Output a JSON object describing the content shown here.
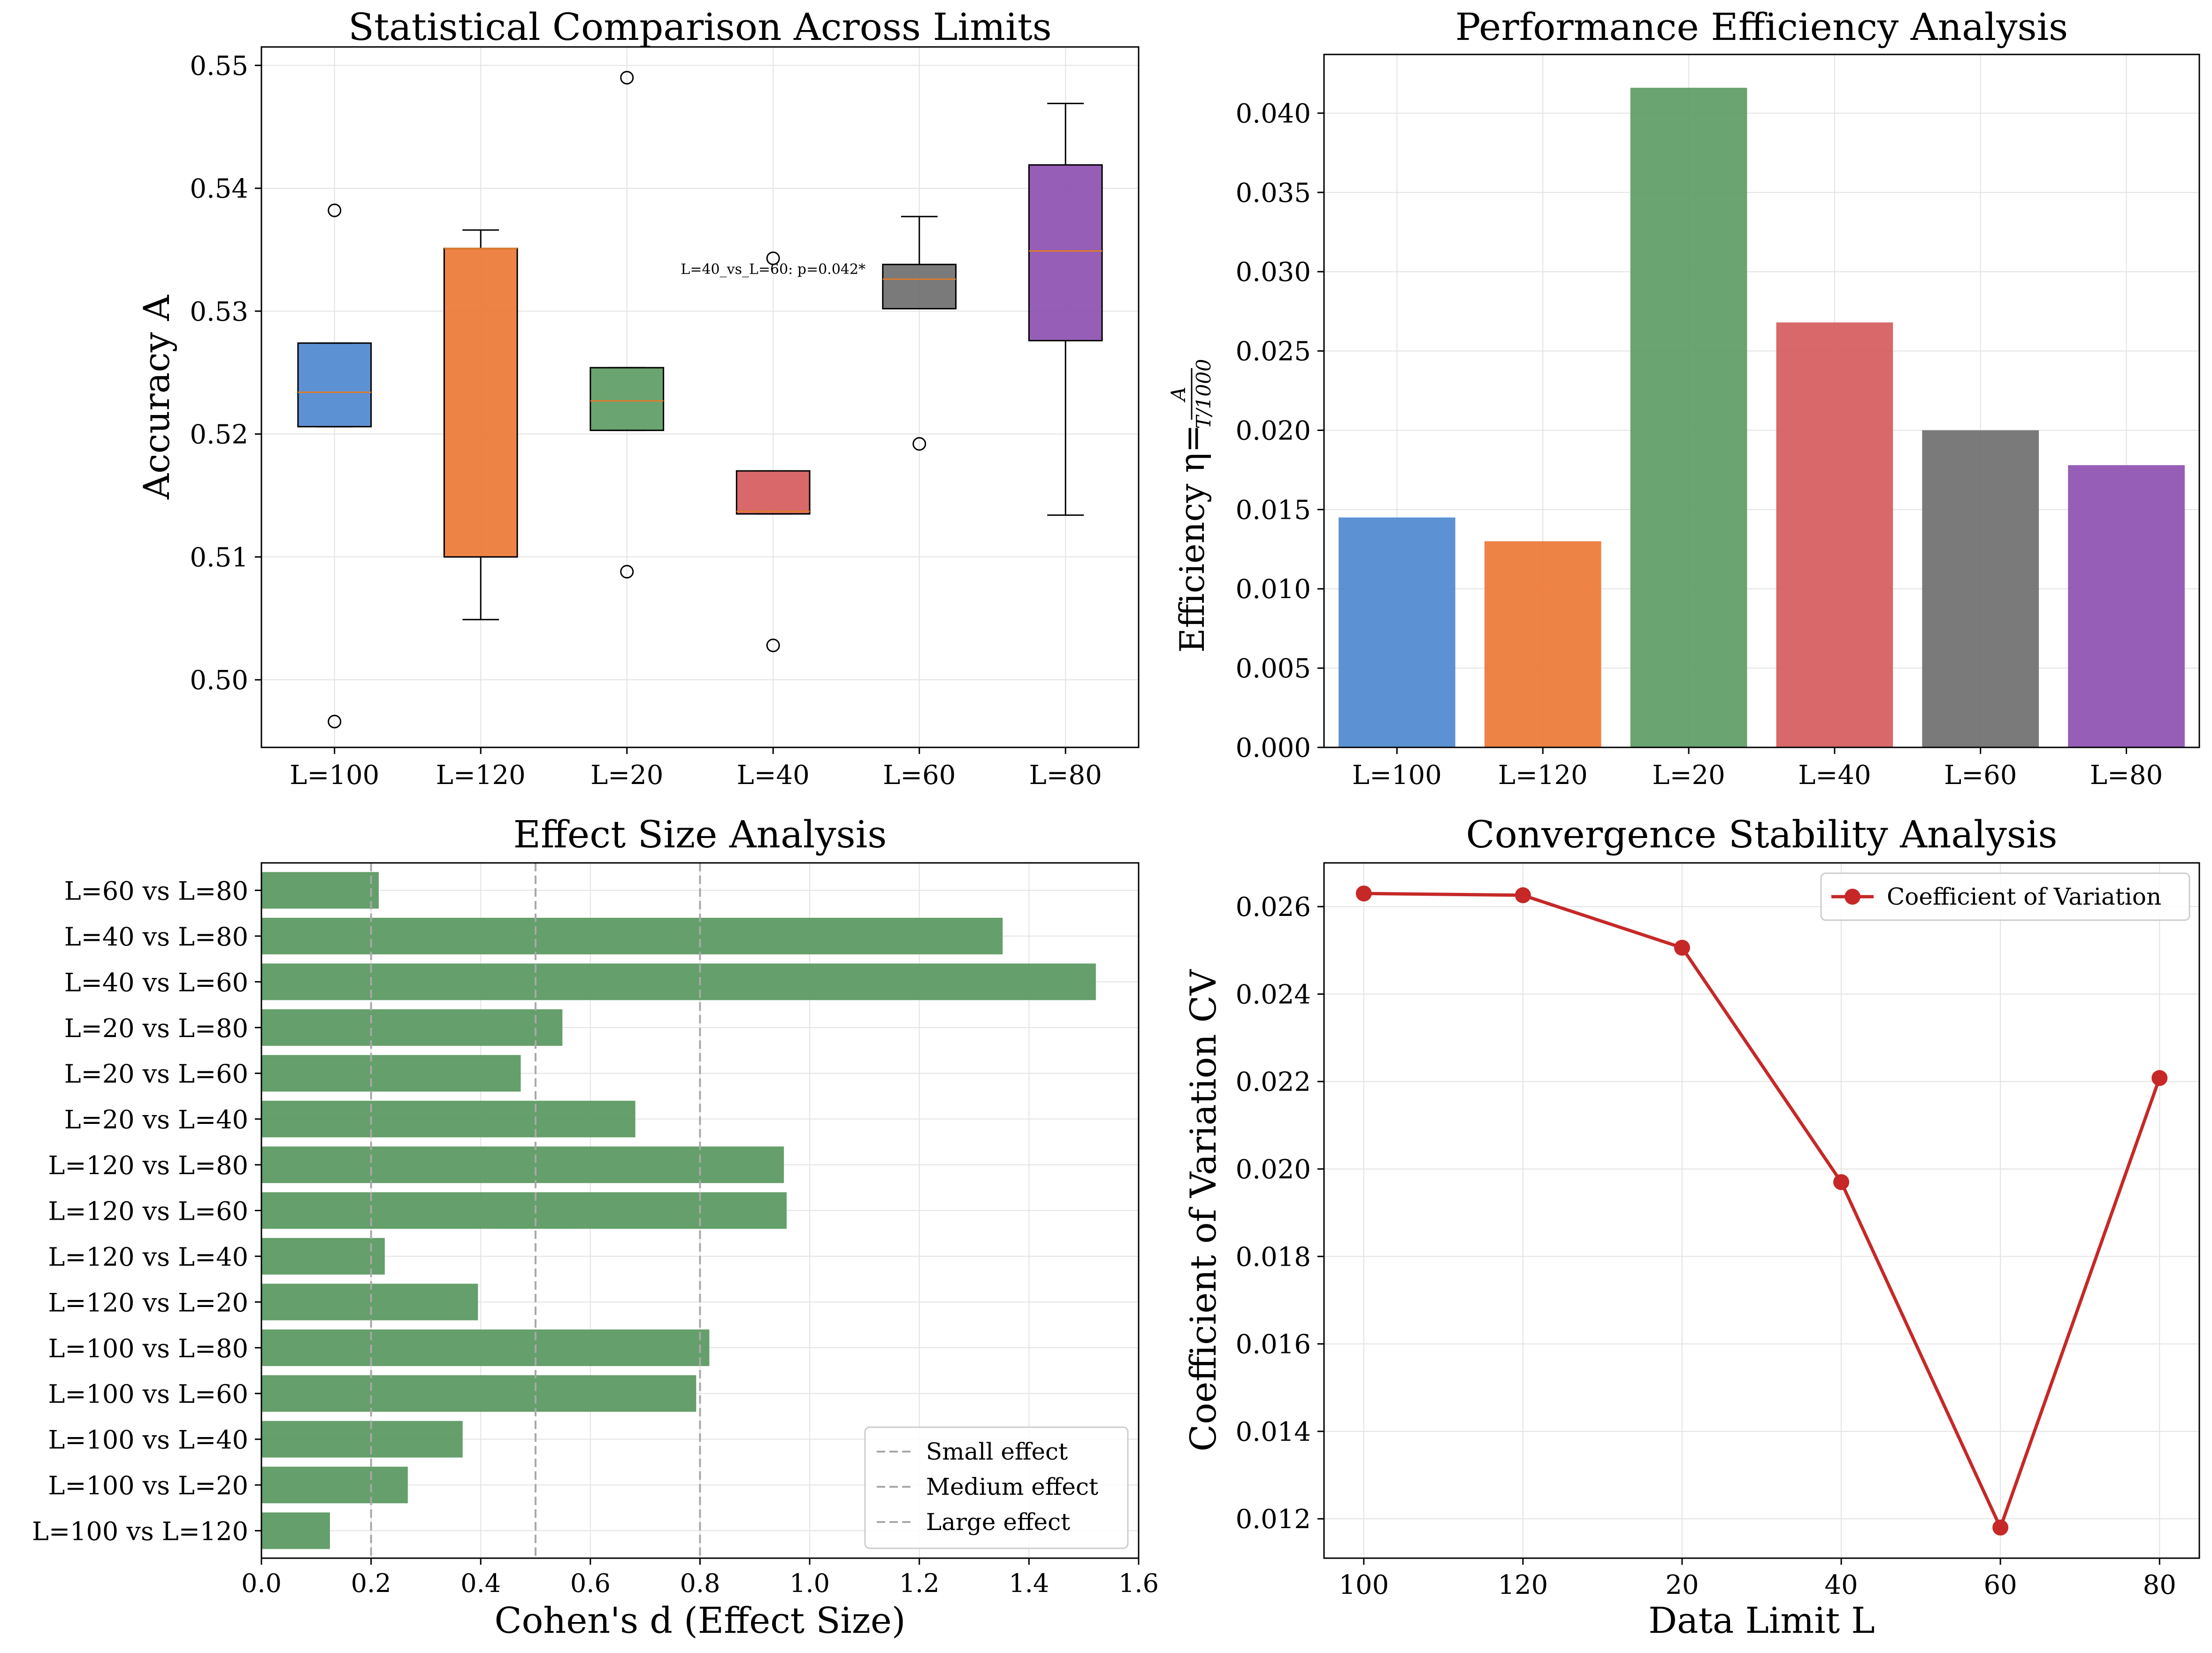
{
  "colors": {
    "blue": "#4a86cf",
    "orange": "#ec7532",
    "green": "#5a9a60",
    "red": "#d4585a",
    "gray": "#6b6b6b",
    "purple": "#8b4caf",
    "effect_bar": "#5d9a63",
    "line": "#c62828",
    "median": "#e07b2a"
  },
  "chart_data": [
    {
      "type": "box",
      "title": "Statistical Comparison Across Limits",
      "xlabel": "",
      "ylabel": "Accuracy A",
      "ylim": [
        0.4945,
        0.5515
      ],
      "yticks": [
        "0.50",
        "0.51",
        "0.52",
        "0.53",
        "0.54",
        "0.55"
      ],
      "categories": [
        "L=100",
        "L=120",
        "L=20",
        "L=40",
        "L=60",
        "L=80"
      ],
      "boxes": [
        {
          "q1": 0.5206,
          "median": 0.5234,
          "q3": 0.5274,
          "whisker_low": 0.5206,
          "whisker_high": 0.5274,
          "outliers": [
            0.5382,
            0.4966
          ]
        },
        {
          "q1": 0.51,
          "median": 0.5351,
          "q3": 0.5351,
          "whisker_low": 0.5049,
          "whisker_high": 0.5366,
          "outliers": []
        },
        {
          "q1": 0.5203,
          "median": 0.5227,
          "q3": 0.5254,
          "whisker_low": 0.5203,
          "whisker_high": 0.5254,
          "outliers": [
            0.549,
            0.5088
          ]
        },
        {
          "q1": 0.5135,
          "median": 0.5137,
          "q3": 0.517,
          "whisker_low": 0.5135,
          "whisker_high": 0.517,
          "outliers": [
            0.5343,
            0.5028
          ]
        },
        {
          "q1": 0.5302,
          "median": 0.5326,
          "q3": 0.5338,
          "whisker_low": 0.5302,
          "whisker_high": 0.5377,
          "outliers": [
            0.5192
          ]
        },
        {
          "q1": 0.5276,
          "median": 0.5349,
          "q3": 0.5419,
          "whisker_low": 0.5134,
          "whisker_high": 0.5469,
          "outliers": []
        }
      ],
      "annotation": {
        "text": "L=40_vs_L=60: p=0.042*",
        "x_category": "L=40",
        "y": 0.5338
      }
    },
    {
      "type": "bar",
      "title": "Performance Efficiency Analysis",
      "ylabel_prefix": "Efficiency η=",
      "ylabel_numerator": "A",
      "ylabel_denominator": "T/1000",
      "ylim": [
        0,
        0.0437
      ],
      "yticks": [
        "0.000",
        "0.005",
        "0.010",
        "0.015",
        "0.020",
        "0.025",
        "0.030",
        "0.035",
        "0.040"
      ],
      "categories": [
        "L=100",
        "L=120",
        "L=20",
        "L=40",
        "L=60",
        "L=80"
      ],
      "values": [
        0.0145,
        0.013,
        0.0416,
        0.0268,
        0.02,
        0.0178
      ]
    },
    {
      "type": "barh",
      "title": "Effect Size Analysis",
      "xlabel": "Cohen's d (Effect Size)",
      "xlim": [
        0,
        1.6
      ],
      "xticks": [
        "0.0",
        "0.2",
        "0.4",
        "0.6",
        "0.8",
        "1.0",
        "1.2",
        "1.4",
        "1.6"
      ],
      "categories": [
        "L=100 vs L=120",
        "L=100 vs L=20",
        "L=100 vs L=40",
        "L=100 vs L=60",
        "L=100 vs L=80",
        "L=120 vs L=20",
        "L=120 vs L=40",
        "L=120 vs L=60",
        "L=120 vs L=80",
        "L=20 vs L=40",
        "L=20 vs L=60",
        "L=20 vs L=80",
        "L=40 vs L=60",
        "L=40 vs L=80",
        "L=60 vs L=80"
      ],
      "values": [
        0.125,
        0.267,
        0.367,
        0.793,
        0.817,
        0.395,
        0.225,
        0.958,
        0.953,
        0.682,
        0.473,
        0.549,
        1.522,
        1.352,
        0.214
      ],
      "reference_lines": [
        {
          "name": "Small effect",
          "x": 0.2
        },
        {
          "name": "Medium effect",
          "x": 0.5
        },
        {
          "name": "Large effect",
          "x": 0.8
        }
      ],
      "legend_position": "lower-right"
    },
    {
      "type": "line",
      "title": "Convergence Stability Analysis",
      "xlabel": "Data Limit L",
      "ylabel": "Coefficient of Variation CV",
      "x": [
        "100",
        "120",
        "20",
        "40",
        "60",
        "80"
      ],
      "ylim": [
        0.0111,
        0.027
      ],
      "yticks": [
        "0.012",
        "0.014",
        "0.016",
        "0.018",
        "0.020",
        "0.022",
        "0.024",
        "0.026"
      ],
      "series": [
        {
          "name": "Coefficient of Variation",
          "values": [
            0.0263,
            0.02626,
            0.02506,
            0.0197,
            0.0118,
            0.02208
          ]
        }
      ],
      "legend_position": "top-right"
    }
  ]
}
